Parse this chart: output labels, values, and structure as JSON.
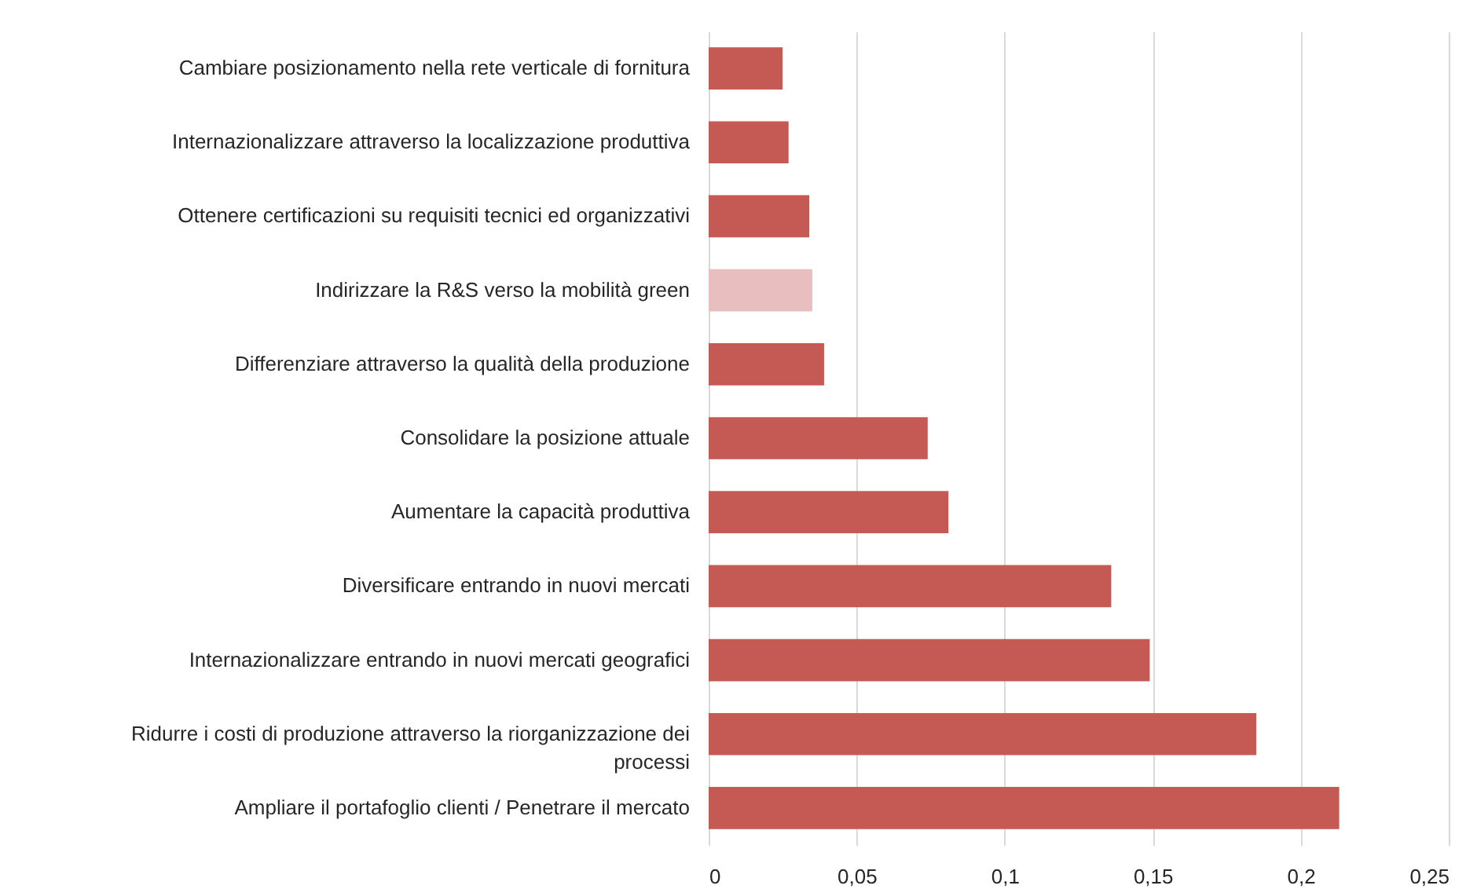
{
  "chart_data": {
    "type": "bar",
    "orientation": "horizontal",
    "categories": [
      "Cambiare posizionamento nella rete verticale di fornitura",
      "Internazionalizzare attraverso la localizzazione produttiva",
      "Ottenere certificazioni su requisiti tecnici ed organizzativi",
      "Indirizzare la R&S verso la mobilità green",
      "Differenziare attraverso la qualità della produzione",
      "Consolidare la posizione attuale",
      "Aumentare la capacità produttiva",
      "Diversificare entrando in nuovi mercati",
      "Internazionalizzare entrando in nuovi mercati geografici",
      "Ridurre i costi di produzione attraverso la riorganizzazione dei processi",
      "Ampliare il portafoglio clienti / Penetrare il mercato"
    ],
    "values": [
      0.025,
      0.027,
      0.034,
      0.035,
      0.039,
      0.074,
      0.081,
      0.136,
      0.149,
      0.185,
      0.213
    ],
    "colors": [
      "#c55a55",
      "#c55a55",
      "#c55a55",
      "#e8bebe",
      "#c55a55",
      "#c55a55",
      "#c55a55",
      "#c55a55",
      "#c55a55",
      "#c55a55",
      "#c55a55"
    ],
    "xlim": [
      0,
      0.25
    ],
    "xticks": [
      0,
      {
        "value": 0.05,
        "label": "0,05"
      },
      {
        "value": 0.1,
        "label": "0,1"
      },
      {
        "value": 0.15,
        "label": "0,15"
      },
      {
        "value": 0.2,
        "label": "0,2"
      },
      {
        "value": 0.25,
        "label": "0,25"
      }
    ],
    "grid": "x"
  }
}
